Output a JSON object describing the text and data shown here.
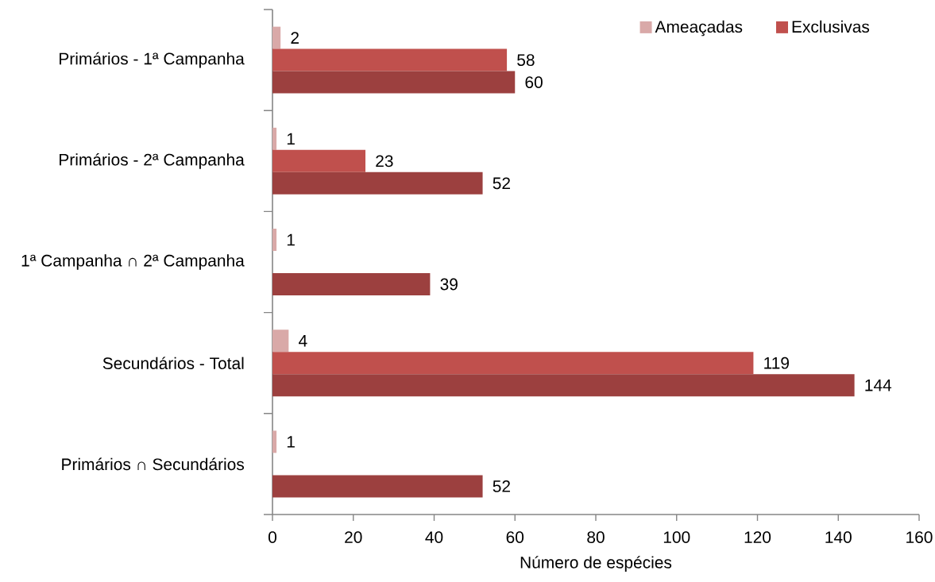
{
  "chart_data": {
    "type": "bar",
    "orientation": "horizontal",
    "categories": [
      "Primários - 1ª Campanha",
      "Primários - 2ª Campanha",
      "1ª Campanha ∩ 2ª Campanha",
      "Secundários - Total",
      "Primários ∩ Secundários"
    ],
    "series": [
      {
        "name": "Ameaçadas",
        "color": "#d9a9a8",
        "values": [
          2,
          1,
          1,
          4,
          1
        ]
      },
      {
        "name": "Exclusivas",
        "color": "#c0504d",
        "values": [
          58,
          23,
          null,
          119,
          null
        ]
      },
      {
        "color": "#9c403f",
        "values": [
          60,
          52,
          39,
          144,
          52
        ]
      }
    ],
    "xlabel": "Número de espécies",
    "xlim": [
      0,
      160
    ],
    "xticks": [
      0,
      20,
      40,
      60,
      80,
      100,
      120,
      140,
      160
    ],
    "data_labels": true,
    "legend": "top right"
  }
}
